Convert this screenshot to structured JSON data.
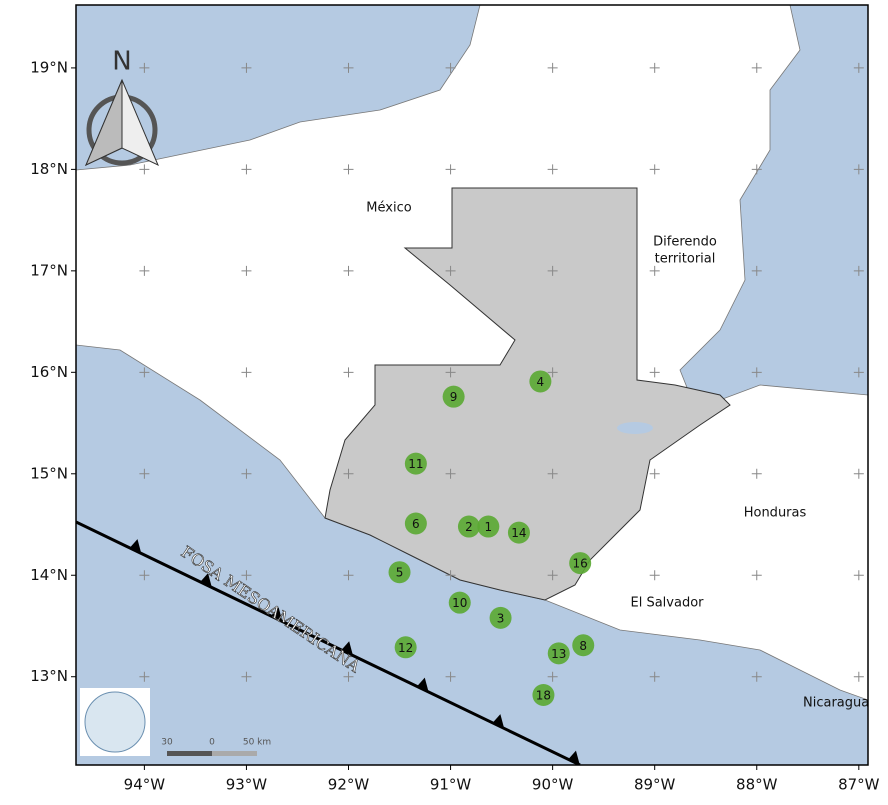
{
  "map": {
    "north": "N",
    "lat_ticks": [
      {
        "value": 19,
        "label": "19°N"
      },
      {
        "value": 18,
        "label": "18°N"
      },
      {
        "value": 17,
        "label": "17°N"
      },
      {
        "value": 16,
        "label": "16°N"
      },
      {
        "value": 15,
        "label": "15°N"
      },
      {
        "value": 14,
        "label": "14°N"
      },
      {
        "value": 13,
        "label": "13°N"
      }
    ],
    "lon_ticks": [
      {
        "value": -94,
        "label": "94°W"
      },
      {
        "value": -93,
        "label": "93°W"
      },
      {
        "value": -92,
        "label": "92°W"
      },
      {
        "value": -91,
        "label": "91°W"
      },
      {
        "value": -90,
        "label": "90°W"
      },
      {
        "value": -89,
        "label": "89°W"
      },
      {
        "value": -88,
        "label": "88°W"
      },
      {
        "value": -87,
        "label": "87°W"
      }
    ],
    "lonlim": [
      -94.67,
      -86.91
    ],
    "latlim": [
      12.13,
      19.62
    ],
    "places": {
      "mexico": "México",
      "diferendo": "Diferendo",
      "territorial": "territorial",
      "honduras": "Honduras",
      "el_salvador": "El Salvador",
      "nicaragua": "Nicaragua"
    },
    "trench": "FOSA MESOAMERICANA",
    "scale": [
      "30",
      "0",
      "50 km"
    ],
    "marker_color": "#5aa832",
    "markers": [
      {
        "label": "1",
        "lon": -90.63,
        "lat": 14.48
      },
      {
        "label": "2",
        "lon": -90.82,
        "lat": 14.48
      },
      {
        "label": "3",
        "lon": -90.51,
        "lat": 13.58
      },
      {
        "label": "4",
        "lon": -90.12,
        "lat": 15.91
      },
      {
        "label": "5",
        "lon": -91.5,
        "lat": 14.03
      },
      {
        "label": "6",
        "lon": -91.34,
        "lat": 14.51
      },
      {
        "label": "8",
        "lon": -89.7,
        "lat": 13.31
      },
      {
        "label": "9",
        "lon": -90.97,
        "lat": 15.76
      },
      {
        "label": "10",
        "lon": -90.91,
        "lat": 13.73
      },
      {
        "label": "11",
        "lon": -91.34,
        "lat": 15.1
      },
      {
        "label": "12",
        "lon": -91.44,
        "lat": 13.29
      },
      {
        "label": "13",
        "lon": -89.94,
        "lat": 13.23
      },
      {
        "label": "14",
        "lon": -90.33,
        "lat": 14.42
      },
      {
        "label": "16",
        "lon": -89.73,
        "lat": 14.12
      },
      {
        "label": "18",
        "lon": -90.09,
        "lat": 12.82
      }
    ]
  }
}
